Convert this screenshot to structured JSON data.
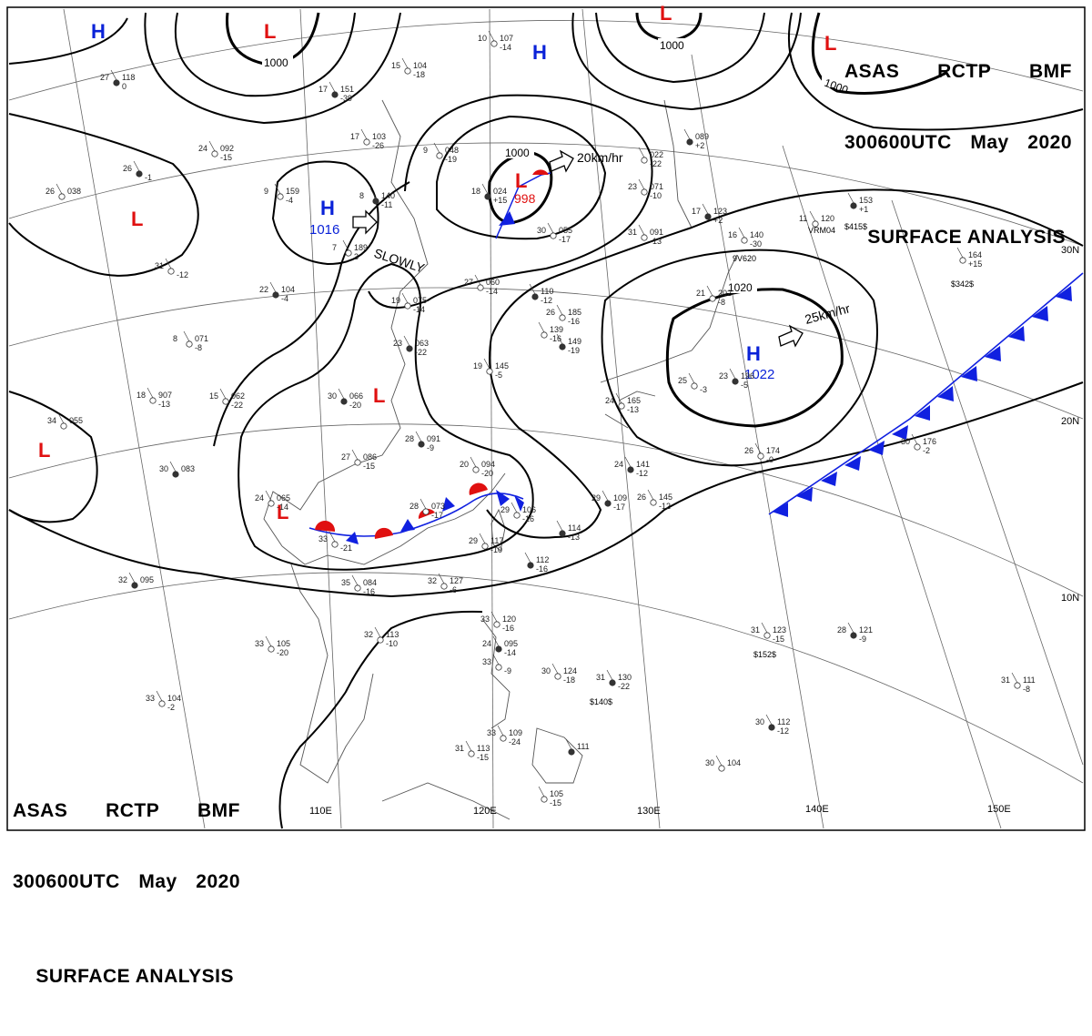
{
  "title": {
    "line1": [
      "ASAS",
      "RCTP",
      "BMF"
    ],
    "line2": [
      "300600UTC",
      "May",
      "2020"
    ],
    "line3": "SURFACE ANALYSIS"
  },
  "colors": {
    "isobar": "#000000",
    "high": "#0a22d8",
    "low": "#e01010",
    "cold_front": "#1020e0",
    "warm_front": "#e01010",
    "grid": "#666666",
    "coast": "#555555"
  },
  "lon_labels": [
    "110E",
    "120E",
    "130E",
    "140E",
    "150E"
  ],
  "lat_labels": [
    "30N",
    "20N",
    "10N"
  ],
  "isobar_labels": [
    "1000",
    "1000",
    "1000",
    "1000",
    "1020"
  ],
  "pressure_centers": [
    {
      "type": "H",
      "value": ""
    },
    {
      "type": "H",
      "value": ""
    },
    {
      "type": "H",
      "value": "1016",
      "motion": "SLOWLY"
    },
    {
      "type": "L",
      "value": ""
    },
    {
      "type": "L",
      "value": ""
    },
    {
      "type": "L",
      "value": ""
    },
    {
      "type": "L",
      "value": "998",
      "motion": "20km/hr"
    },
    {
      "type": "H",
      "value": "1022",
      "motion": "25km/hr"
    },
    {
      "type": "L",
      "value": ""
    },
    {
      "type": "L",
      "value": ""
    },
    {
      "type": "L",
      "value": ""
    },
    {
      "type": "L",
      "value": ""
    }
  ],
  "stations": [
    {
      "t": "27",
      "p": "118",
      "d": "0"
    },
    {
      "t": "10",
      "p": "107",
      "d": "-14"
    },
    {
      "t": "15",
      "p": "104",
      "d": "-18"
    },
    {
      "t": "17",
      "p": "151",
      "d": "-39"
    },
    {
      "t": "17",
      "p": "103",
      "d": "-26"
    },
    {
      "t": "24",
      "p": "092",
      "d": "-15"
    },
    {
      "t": "26",
      "p": "",
      "d": "-1"
    },
    {
      "t": "26",
      "p": "038",
      "d": ""
    },
    {
      "t": "9",
      "p": "159",
      "d": "-4"
    },
    {
      "t": "8",
      "p": "140",
      "d": "-11"
    },
    {
      "t": "7",
      "p": "189",
      "d": "3"
    },
    {
      "t": "9",
      "p": "048",
      "d": "-19"
    },
    {
      "t": "18",
      "p": "024",
      "d": "+15"
    },
    {
      "t": "",
      "p": "022",
      "d": "-22"
    },
    {
      "t": "23",
      "p": "071",
      "d": "-10"
    },
    {
      "t": "",
      "p": "089",
      "d": "+2"
    },
    {
      "t": "30",
      "p": "055",
      "d": "-17"
    },
    {
      "t": "31",
      "p": "091",
      "d": "-13"
    },
    {
      "t": "17",
      "p": "123",
      "d": "+2"
    },
    {
      "t": "16",
      "p": "140",
      "d": "-30"
    },
    {
      "t": "11",
      "p": "120",
      "d": ""
    },
    {
      "t": "",
      "p": "153",
      "d": "+1"
    },
    {
      "t": "",
      "p": "164",
      "d": "+15"
    },
    {
      "t": "31",
      "p": "",
      "d": "-12"
    },
    {
      "t": "22",
      "p": "104",
      "d": "-4"
    },
    {
      "t": "19",
      "p": "075",
      "d": "-14"
    },
    {
      "t": "27",
      "p": "060",
      "d": "-14"
    },
    {
      "t": "",
      "p": "110",
      "d": "-12"
    },
    {
      "t": "26",
      "p": "185",
      "d": "-16"
    },
    {
      "t": "",
      "p": "139",
      "d": "-16"
    },
    {
      "t": "",
      "p": "149",
      "d": "-19"
    },
    {
      "t": "21",
      "p": "202",
      "d": "-8"
    },
    {
      "t": "8",
      "p": "071",
      "d": "-8"
    },
    {
      "t": "23",
      "p": "063",
      "d": "-22"
    },
    {
      "t": "19",
      "p": "145",
      "d": "-5"
    },
    {
      "t": "25",
      "p": "",
      "d": "-3"
    },
    {
      "t": "23",
      "p": "196",
      "d": "-5"
    },
    {
      "t": "18",
      "p": "907",
      "d": "-13"
    },
    {
      "t": "15",
      "p": "062",
      "d": "-22"
    },
    {
      "t": "30",
      "p": "066",
      "d": "-20"
    },
    {
      "t": "34",
      "p": "055",
      "d": ""
    },
    {
      "t": "24",
      "p": "165",
      "d": "-13"
    },
    {
      "t": "28",
      "p": "091",
      "d": "-9"
    },
    {
      "t": "26",
      "p": "174",
      "d": "-0"
    },
    {
      "t": "30",
      "p": "176",
      "d": "-2"
    },
    {
      "t": "30",
      "p": "083",
      "d": ""
    },
    {
      "t": "27",
      "p": "086",
      "d": "-15"
    },
    {
      "t": "20",
      "p": "094",
      "d": "-20"
    },
    {
      "t": "24",
      "p": "141",
      "d": "-12"
    },
    {
      "t": "24",
      "p": "065",
      "d": "-14"
    },
    {
      "t": "28",
      "p": "073",
      "d": "-17"
    },
    {
      "t": "29",
      "p": "109",
      "d": "-17"
    },
    {
      "t": "26",
      "p": "145",
      "d": "-12"
    },
    {
      "t": "29",
      "p": "106",
      "d": "-16"
    },
    {
      "t": "",
      "p": "114",
      "d": "-13"
    },
    {
      "t": "33",
      "p": "",
      "d": "-21"
    },
    {
      "t": "29",
      "p": "117",
      "d": "-10"
    },
    {
      "t": "",
      "p": "112",
      "d": "-16"
    },
    {
      "t": "35",
      "p": "084",
      "d": "-16"
    },
    {
      "t": "32",
      "p": "127",
      "d": "-6"
    },
    {
      "t": "32",
      "p": "095",
      "d": ""
    },
    {
      "t": "33",
      "p": "120",
      "d": "-16"
    },
    {
      "t": "31",
      "p": "123",
      "d": "-15"
    },
    {
      "t": "28",
      "p": "121",
      "d": "-9"
    },
    {
      "t": "33",
      "p": "105",
      "d": "-20"
    },
    {
      "t": "32",
      "p": "113",
      "d": "-10"
    },
    {
      "t": "24",
      "p": "095",
      "d": "-14"
    },
    {
      "t": "33",
      "p": "",
      "d": "-9"
    },
    {
      "t": "30",
      "p": "124",
      "d": "-18"
    },
    {
      "t": "31",
      "p": "130",
      "d": "-22"
    },
    {
      "t": "33",
      "p": "104",
      "d": "-2"
    },
    {
      "t": "31",
      "p": "111",
      "d": "-8"
    },
    {
      "t": "30",
      "p": "112",
      "d": "-12"
    },
    {
      "t": "33",
      "p": "109",
      "d": "-24"
    },
    {
      "t": "31",
      "p": "113",
      "d": "-15"
    },
    {
      "t": "",
      "p": "111",
      "d": ""
    },
    {
      "t": "30",
      "p": "104",
      "d": ""
    },
    {
      "t": "",
      "p": "105",
      "d": "-15"
    }
  ],
  "ship_callsigns": [
    "9V620",
    "VRM04",
    "$415$",
    "$342$",
    "$152$",
    "$140$"
  ]
}
